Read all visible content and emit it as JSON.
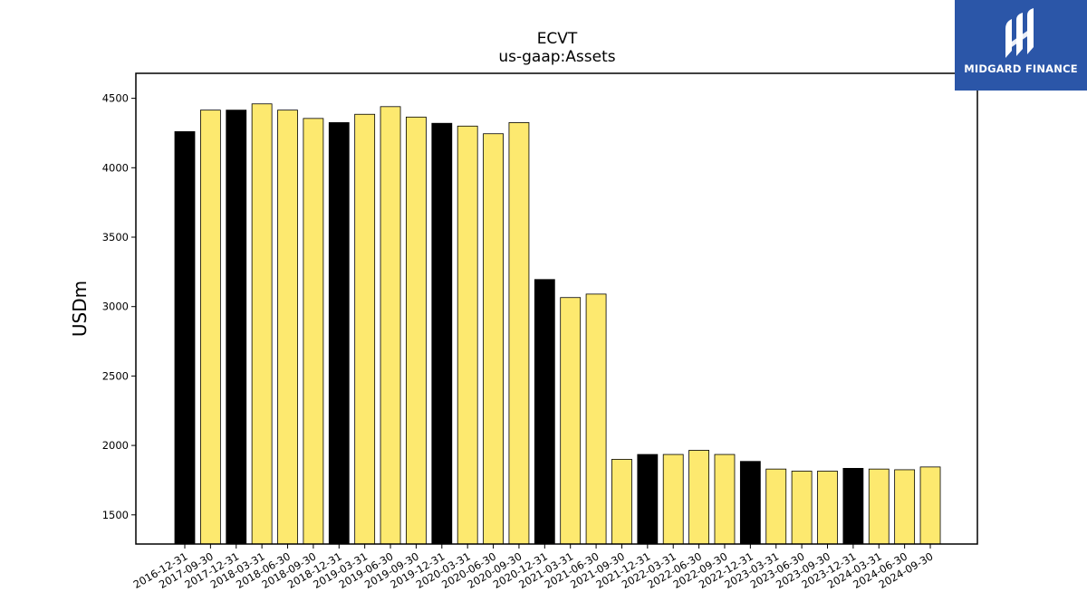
{
  "logo": {
    "text": "MIDGARD FINANCE"
  },
  "colors": {
    "annual": "#000000",
    "quarter": "#fde96f",
    "edge": "#000000",
    "logo_bg": "#2b56a8"
  },
  "chart_data": {
    "type": "bar",
    "title": "ECVT",
    "subtitle": "us-gaap:Assets",
    "xlabel": "",
    "ylabel": "USDm",
    "ylim": [
      1290,
      4680
    ],
    "yticks": [
      1500,
      2000,
      2500,
      3000,
      3500,
      4000,
      4500
    ],
    "grid": false,
    "categories": [
      "2016-12-31",
      "2017-09-30",
      "2017-12-31",
      "2018-03-31",
      "2018-06-30",
      "2018-09-30",
      "2018-12-31",
      "2019-03-31",
      "2019-06-30",
      "2019-09-30",
      "2019-12-31",
      "2020-03-31",
      "2020-06-30",
      "2020-09-30",
      "2020-12-31",
      "2021-03-31",
      "2021-06-30",
      "2021-09-30",
      "2021-12-31",
      "2022-03-31",
      "2022-06-30",
      "2022-09-30",
      "2022-12-31",
      "2023-03-31",
      "2023-06-30",
      "2023-09-30",
      "2023-12-31",
      "2024-03-31",
      "2024-06-30",
      "2024-09-30"
    ],
    "values": [
      4260,
      4415,
      4415,
      4460,
      4415,
      4355,
      4325,
      4385,
      4440,
      4365,
      4320,
      4300,
      4245,
      4325,
      3195,
      3065,
      3090,
      1900,
      1935,
      1935,
      1965,
      1935,
      1885,
      1830,
      1815,
      1815,
      1835,
      1830,
      1825,
      1845
    ],
    "annual": [
      true,
      false,
      true,
      false,
      false,
      false,
      true,
      false,
      false,
      false,
      true,
      false,
      false,
      false,
      true,
      false,
      false,
      false,
      true,
      false,
      false,
      false,
      true,
      false,
      false,
      false,
      true,
      false,
      false,
      false
    ]
  }
}
